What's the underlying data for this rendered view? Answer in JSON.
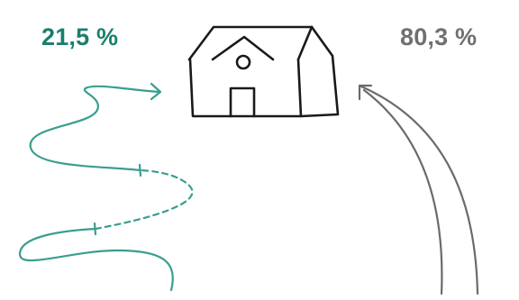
{
  "labels": {
    "left_percentage": "21,5 %",
    "right_percentage": "80,3 %"
  },
  "colors": {
    "teal": "#3a9e8f",
    "teal_text": "#1a7f6e",
    "gray": "#6b6b6b",
    "gray_text": "#707070",
    "ink": "#1a1a1a"
  },
  "icons": {
    "house": "house-icon"
  }
}
